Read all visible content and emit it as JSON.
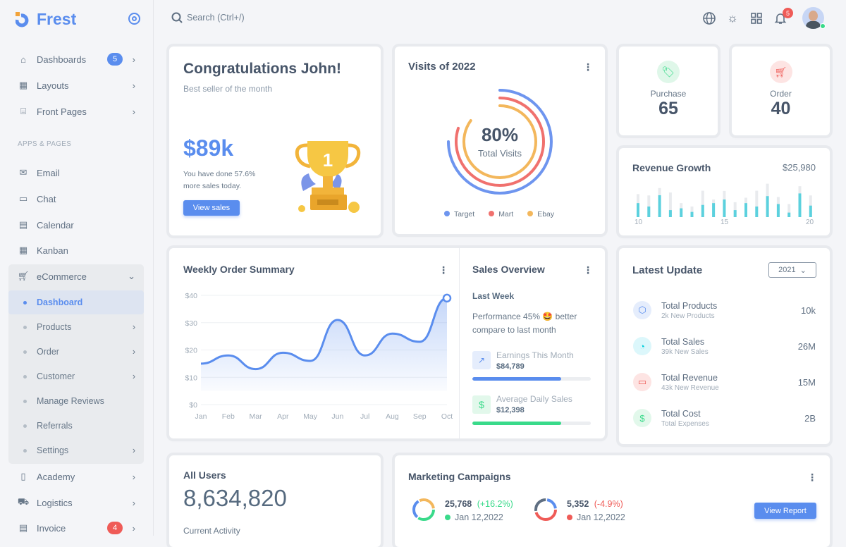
{
  "brand": {
    "name": "Frest"
  },
  "sidebar": {
    "items": [
      {
        "label": "Dashboards",
        "badge": "5",
        "icon": "home-icon"
      },
      {
        "label": "Layouts",
        "icon": "layout-icon"
      },
      {
        "label": "Front Pages",
        "icon": "store-icon"
      }
    ],
    "section": "APPS & PAGES",
    "apps": [
      {
        "label": "Email",
        "icon": "mail-icon"
      },
      {
        "label": "Chat",
        "icon": "chat-icon"
      },
      {
        "label": "Calendar",
        "icon": "calendar-icon"
      },
      {
        "label": "Kanban",
        "icon": "grid-icon"
      },
      {
        "label": "eCommerce",
        "icon": "cart-icon"
      }
    ],
    "ecommerce": [
      "Dashboard",
      "Products",
      "Order",
      "Customer",
      "Manage Reviews",
      "Referrals",
      "Settings"
    ],
    "bottom": [
      {
        "label": "Academy",
        "icon": "book-icon"
      },
      {
        "label": "Logistics",
        "icon": "car-icon"
      },
      {
        "label": "Invoice",
        "badge": "4",
        "icon": "invoice-icon"
      }
    ]
  },
  "topbar": {
    "search_placeholder": "Search (Ctrl+/)",
    "notifications": "5"
  },
  "congrats": {
    "title": "Congratulations John!",
    "subtitle": "Best seller of the month",
    "amount": "$89k",
    "line1": "You have done 57.6%",
    "line2": "more sales today.",
    "button": "View sales"
  },
  "visits": {
    "title": "Visits of 2022",
    "center_value": "80%",
    "center_label": "Total Visits",
    "chart_data": {
      "type": "radialBar",
      "series": [
        {
          "name": "Target",
          "value": 75,
          "color": "#6e95ef"
        },
        {
          "name": "Mart",
          "value": 80,
          "color": "#f0716e"
        },
        {
          "name": "Ebay",
          "value": 85,
          "color": "#f3b75c"
        }
      ]
    }
  },
  "purchase": {
    "label": "Purchase",
    "value": "65"
  },
  "order": {
    "label": "Order",
    "value": "40"
  },
  "revenue": {
    "title": "Revenue Growth",
    "amount": "$25,980",
    "chart_data": {
      "type": "bar",
      "x_labels": [
        "10",
        "15",
        "20"
      ],
      "values": [
        62,
        47,
        97,
        31,
        39,
        23,
        54,
        62,
        78,
        31,
        62,
        47,
        93,
        58,
        20,
        105,
        51
      ],
      "background": [
        102,
        96,
        129,
        109,
        62,
        47,
        117,
        78,
        116,
        66,
        86,
        117,
        148,
        89,
        58,
        137,
        96
      ]
    }
  },
  "weekly": {
    "title": "Weekly Order Summary",
    "chart_data": {
      "type": "area",
      "categories": [
        "Jan",
        "Feb",
        "Mar",
        "Apr",
        "May",
        "Jun",
        "Jul",
        "Aug",
        "Sep",
        "Oct"
      ],
      "values": [
        15,
        18,
        13,
        19,
        16,
        31,
        18,
        26,
        23,
        39
      ],
      "yticks": [
        "$0",
        "$10",
        "$20",
        "$30",
        "$40"
      ],
      "ylim": [
        0,
        40
      ]
    }
  },
  "sales": {
    "title": "Sales Overview",
    "period": "Last Week",
    "perf": "Performance 45% 🤩 better compare to last month",
    "earnings": {
      "label": "Earnings This Month",
      "value": "$84,789",
      "progress": 75
    },
    "daily": {
      "label": "Average Daily Sales",
      "value": "$12,398",
      "progress": 75
    }
  },
  "latest": {
    "title": "Latest Update",
    "year": "2021",
    "rows": [
      {
        "title": "Total Products",
        "sub": "2k New Products",
        "value": "10k"
      },
      {
        "title": "Total Sales",
        "sub": "39k New Sales",
        "value": "26M"
      },
      {
        "title": "Total Revenue",
        "sub": "43k New Revenue",
        "value": "15M"
      },
      {
        "title": "Total Cost",
        "sub": "Total Expenses",
        "value": "2B"
      }
    ]
  },
  "users": {
    "title": "All Users",
    "value": "8,634,820",
    "activity": "Current Activity"
  },
  "marketing": {
    "title": "Marketing Campaigns",
    "c1": {
      "value": "25,768",
      "change": "(+16.2%)",
      "date": "Jan 12,2022"
    },
    "c2": {
      "value": "5,352",
      "change": "(-4.9%)",
      "date": "Jan 12,2022"
    },
    "button": "View Report"
  }
}
